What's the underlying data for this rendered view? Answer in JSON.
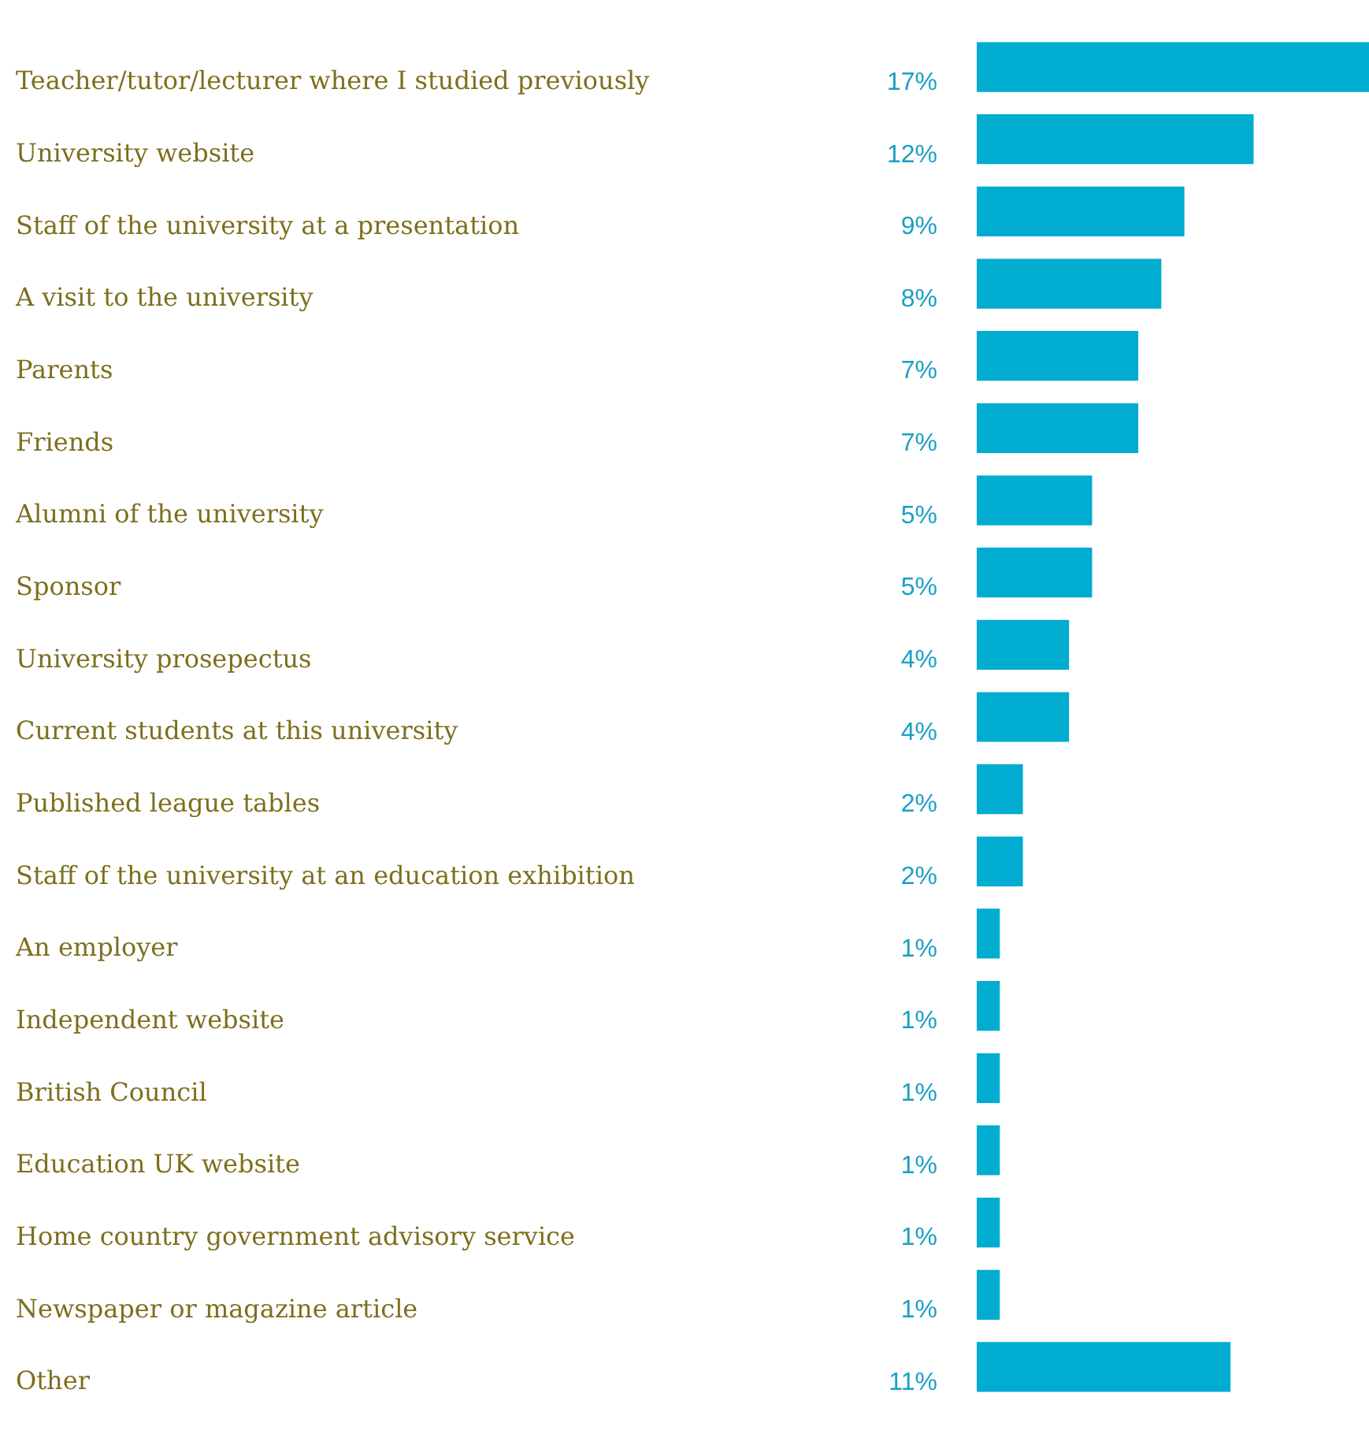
{
  "chart_data": {
    "type": "bar",
    "orientation": "horizontal",
    "categories": [
      "Teacher/tutor/lecturer where I studied previously",
      "University website",
      "Staff of the university at a presentation",
      "A visit to the university",
      "Parents",
      "Friends",
      "Alumni of the university",
      "Sponsor",
      "University prosepectus",
      "Current students at this university",
      "Published league tables",
      "Staff of the university at an education exhibition",
      "An employer",
      "Independent website",
      "British Council",
      "Education UK website",
      "Home country government advisory service",
      "Newspaper or magazine article",
      "Other"
    ],
    "values": [
      17,
      12,
      9,
      8,
      7,
      7,
      5,
      5,
      4,
      4,
      2,
      2,
      1,
      1,
      1,
      1,
      1,
      1,
      11
    ],
    "value_labels": [
      "17%",
      "12%",
      "9%",
      "8%",
      "7%",
      "7%",
      "5%",
      "5%",
      "4%",
      "4%",
      "2%",
      "2%",
      "1%",
      "1%",
      "1%",
      "1%",
      "1%",
      "1%",
      "11%"
    ],
    "color": "#00acd0",
    "legend": false,
    "tick_labels": "y"
  }
}
